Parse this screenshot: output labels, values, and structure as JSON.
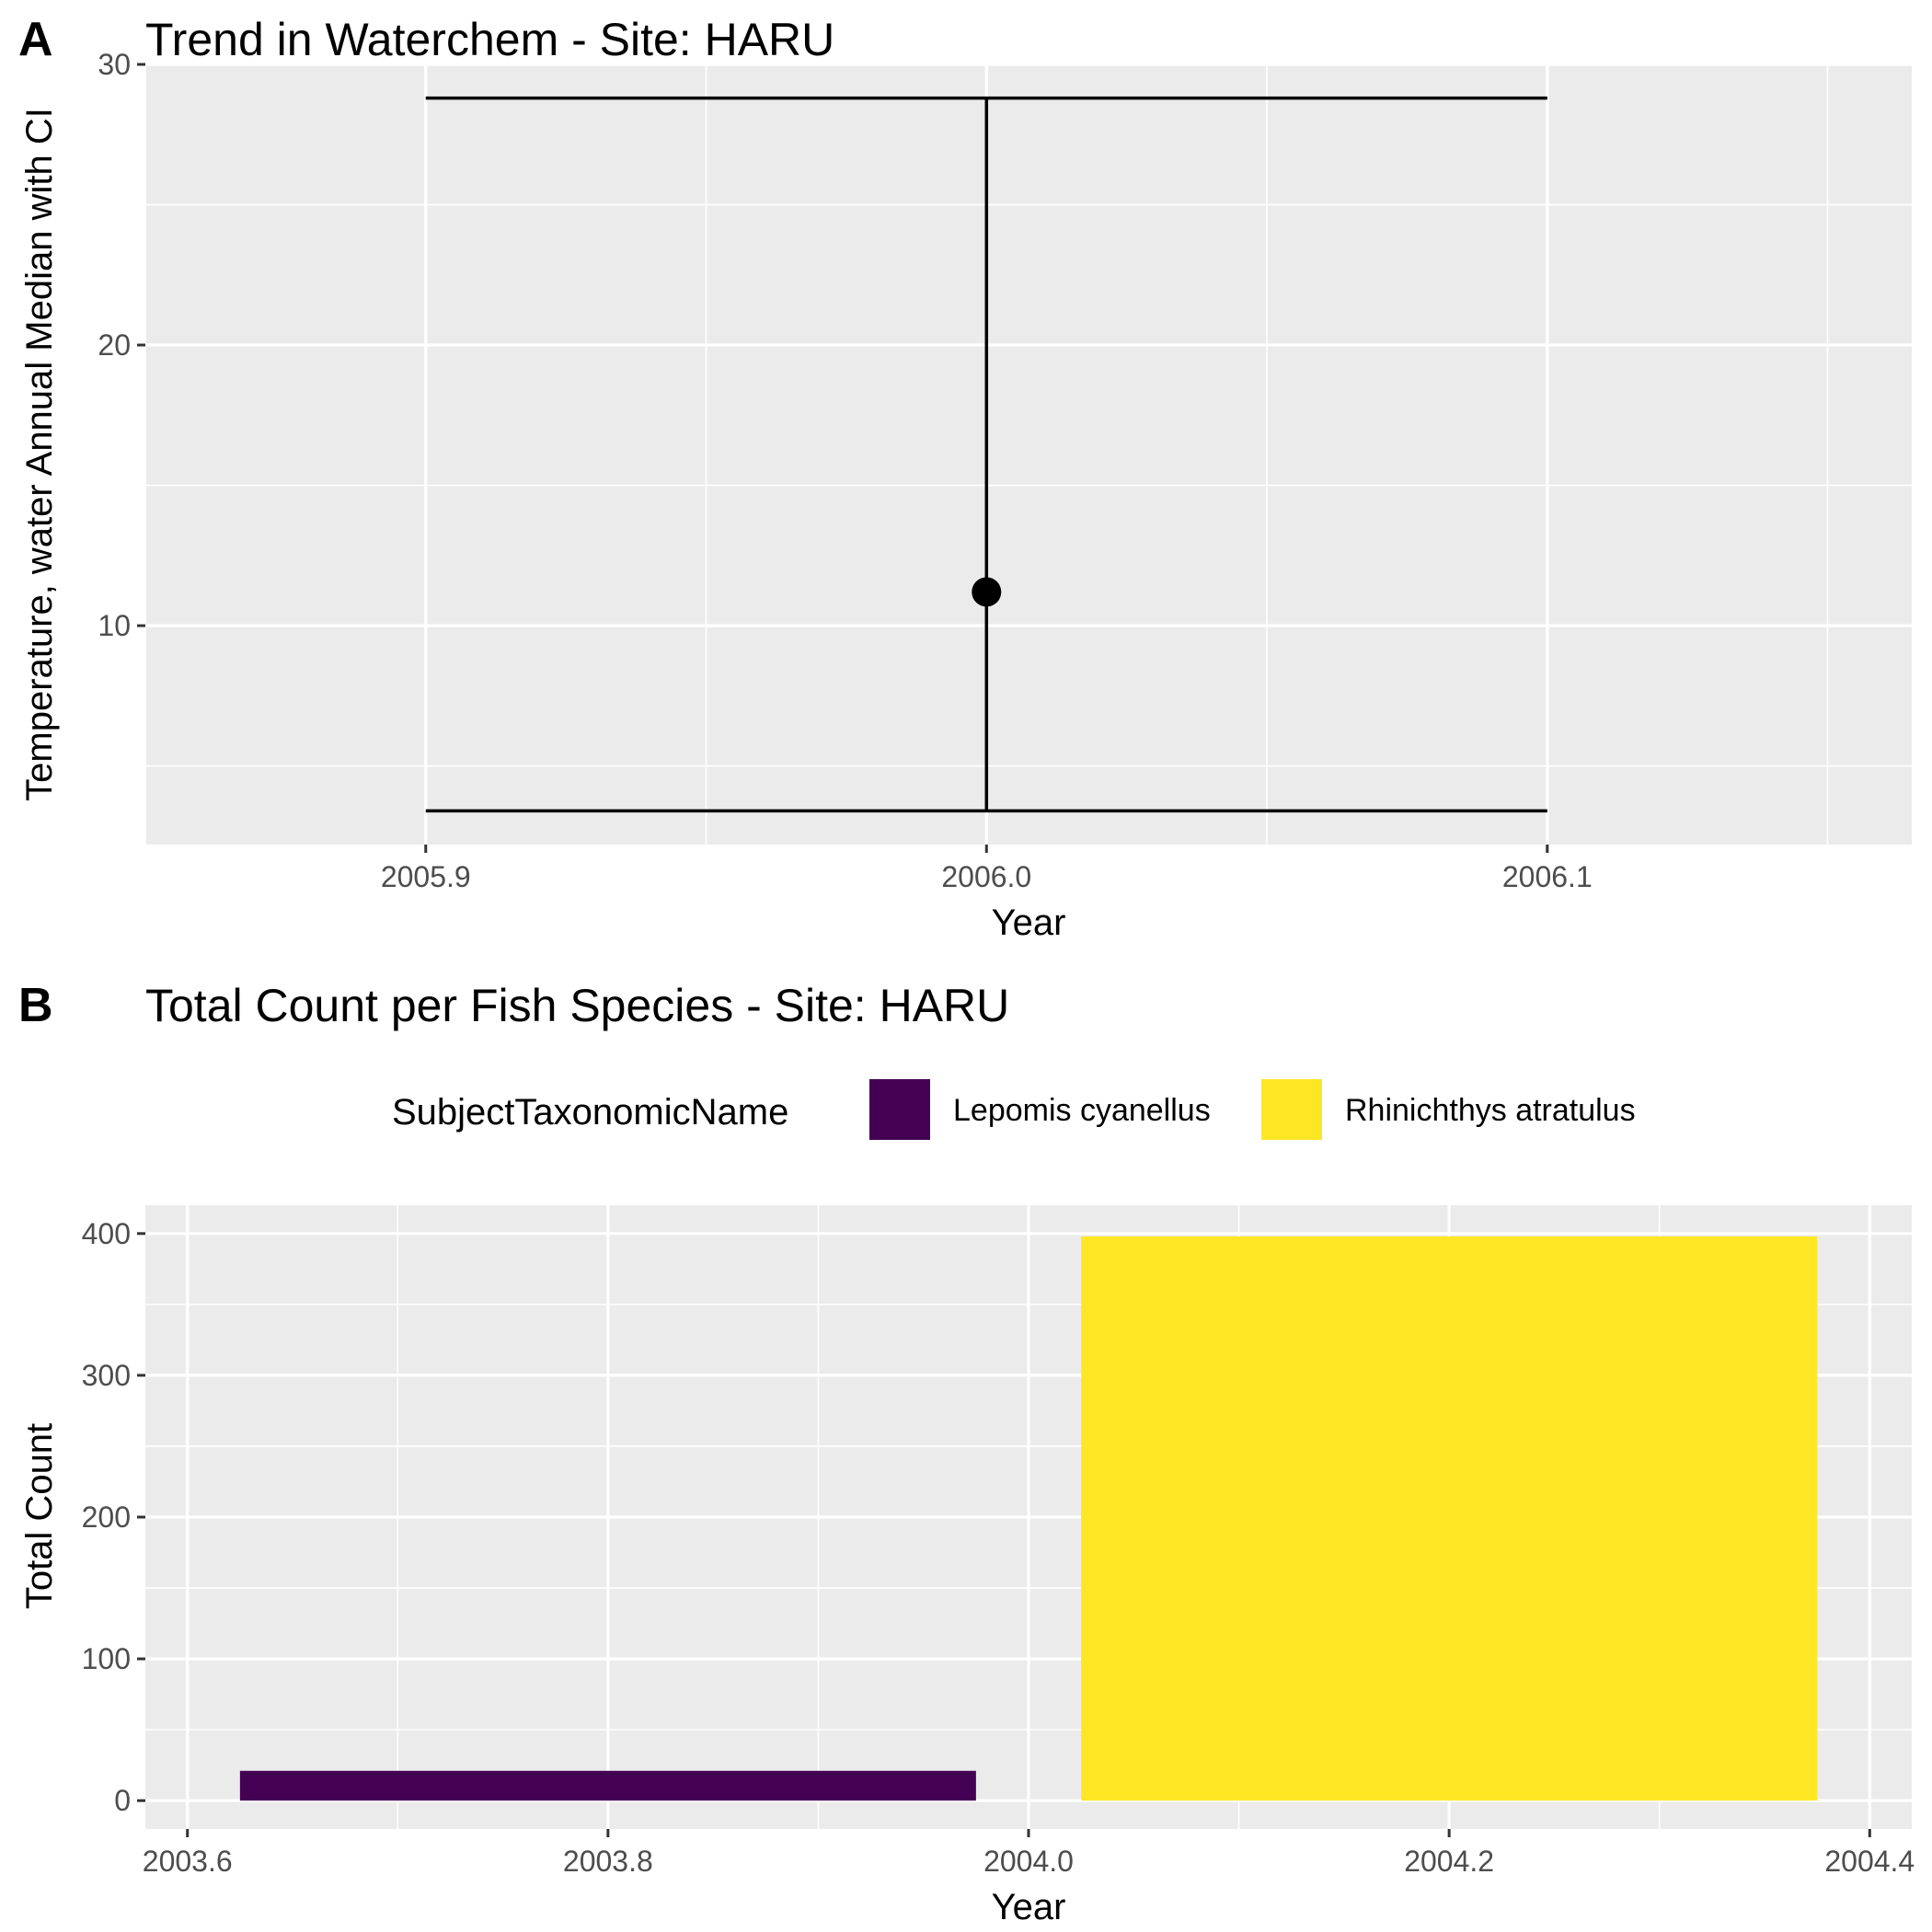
{
  "figure": {
    "panels": [
      "A",
      "B"
    ]
  },
  "chart_data": [
    {
      "type": "errorbar",
      "panel_label": "A",
      "title": "Trend in Waterchem - Site: HARU",
      "xlabel": "Year",
      "ylabel": "Temperature, water Annual Median with CI",
      "xlim": [
        2005.85,
        2006.165
      ],
      "ylim": [
        2.2,
        30
      ],
      "x_ticks": [
        2005.9,
        2006.0,
        2006.1
      ],
      "x_tick_labels": [
        "2005.9",
        "2006.0",
        "2006.1"
      ],
      "y_ticks": [
        10,
        20,
        30
      ],
      "y_tick_labels": [
        "10",
        "20",
        "30"
      ],
      "grid": true,
      "points": [
        {
          "x": 2006.0,
          "median": 11.2,
          "ci_low": 3.4,
          "ci_high": 28.8,
          "cap_half_width": 0.1
        }
      ]
    },
    {
      "type": "bar",
      "panel_label": "B",
      "title": "Total Count per Fish Species - Site: HARU",
      "xlabel": "Year",
      "ylabel": "Total Count",
      "xlim": [
        2003.58,
        2004.42
      ],
      "ylim": [
        -20,
        420
      ],
      "x_ticks": [
        2003.6,
        2003.8,
        2004.0,
        2004.2,
        2004.4
      ],
      "x_tick_labels": [
        "2003.6",
        "2003.8",
        "2004.0",
        "2004.2",
        "2004.4"
      ],
      "y_ticks": [
        0,
        100,
        200,
        300,
        400
      ],
      "y_tick_labels": [
        "0",
        "100",
        "200",
        "300",
        "400"
      ],
      "grid": true,
      "legend": {
        "title": "SubjectTaxonomicName",
        "position": "top",
        "entries": [
          {
            "name": "Lepomis cyanellus",
            "color": "#440154"
          },
          {
            "name": "Rhinichthys atratulus",
            "color": "#FDE725"
          }
        ]
      },
      "bars": [
        {
          "series": "Lepomis cyanellus",
          "x_start": 2003.625,
          "x_end": 2003.975,
          "value": 21,
          "color": "#440154"
        },
        {
          "series": "Rhinichthys atratulus",
          "x_start": 2004.025,
          "x_end": 2004.375,
          "value": 398,
          "color": "#FDE725"
        }
      ]
    }
  ]
}
